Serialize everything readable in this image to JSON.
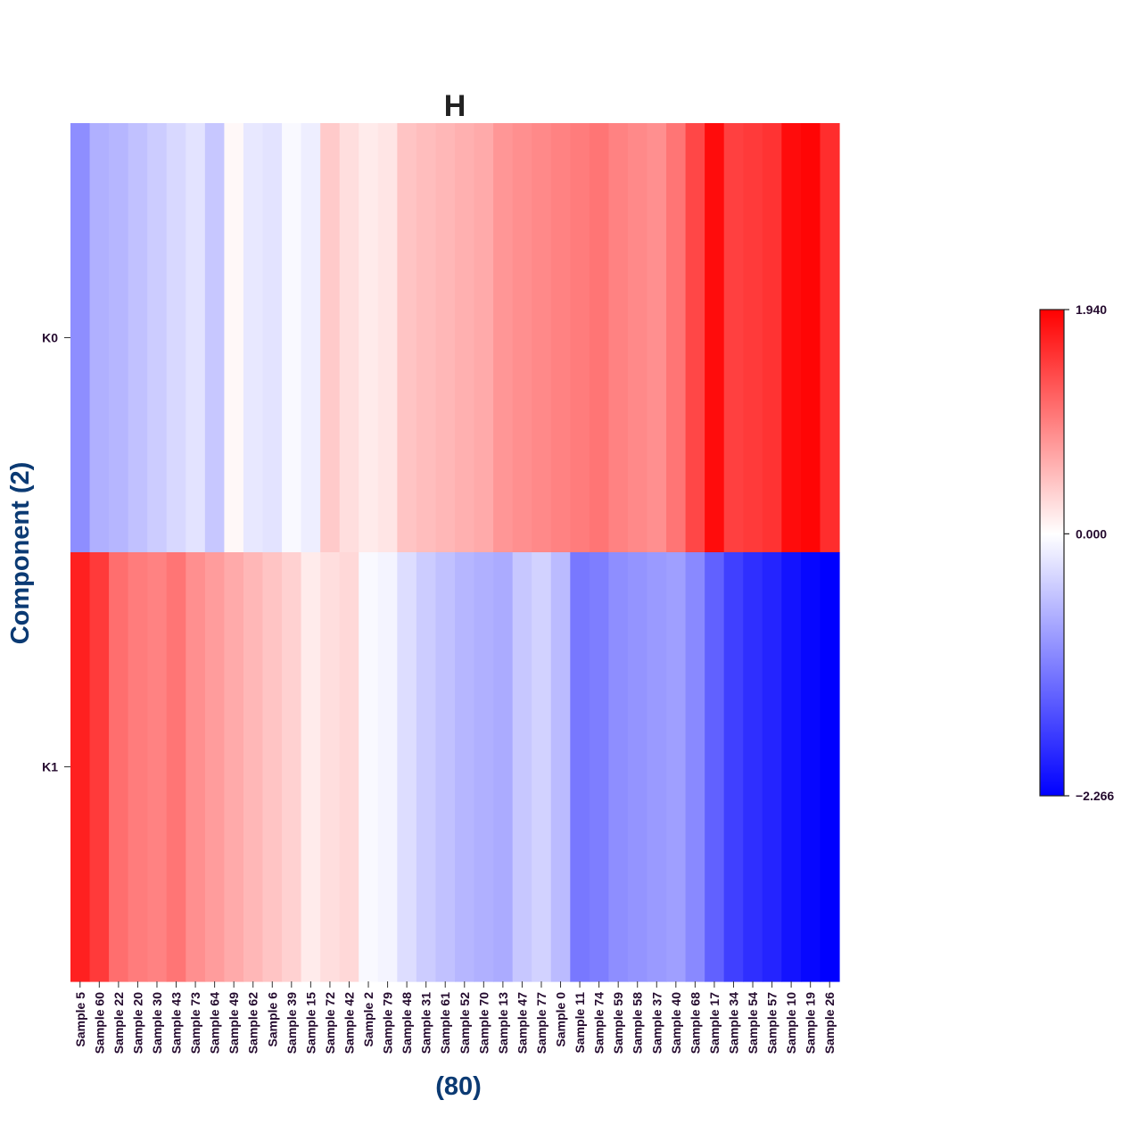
{
  "chart_data": {
    "type": "heatmap",
    "title": "H",
    "xlabel": "(80)",
    "ylabel": "Component (2)",
    "rows": [
      "K0",
      "K1"
    ],
    "columns": [
      "Sample 5",
      "Sample 60",
      "Sample 22",
      "Sample 20",
      "Sample 30",
      "Sample 43",
      "Sample 73",
      "Sample 64",
      "Sample 49",
      "Sample 62",
      "Sample 6",
      "Sample 39",
      "Sample 15",
      "Sample 72",
      "Sample 42",
      "Sample 2",
      "Sample 79",
      "Sample 48",
      "Sample 31",
      "Sample 61",
      "Sample 52",
      "Sample 70",
      "Sample 13",
      "Sample 47",
      "Sample 77",
      "Sample 0",
      "Sample 11",
      "Sample 74",
      "Sample 59",
      "Sample 58",
      "Sample 37",
      "Sample 40",
      "Sample 68",
      "Sample 17",
      "Sample 34",
      "Sample 54",
      "Sample 57",
      "Sample 10",
      "Sample 19",
      "Sample 26"
    ],
    "values": [
      [
        -1.0,
        -0.7,
        -0.65,
        -0.55,
        -0.45,
        -0.35,
        -0.25,
        -0.5,
        0.05,
        -0.2,
        -0.25,
        -0.05,
        -0.15,
        0.4,
        0.25,
        0.15,
        0.2,
        0.45,
        0.5,
        0.55,
        0.6,
        0.65,
        0.8,
        0.85,
        0.9,
        0.95,
        1.0,
        1.05,
        0.95,
        0.9,
        0.85,
        1.05,
        1.4,
        1.85,
        1.45,
        1.5,
        1.55,
        1.85,
        1.9,
        1.6
      ],
      [
        1.7,
        1.5,
        1.1,
        1.0,
        0.95,
        1.05,
        0.85,
        0.75,
        0.65,
        0.55,
        0.45,
        0.35,
        0.15,
        0.25,
        0.3,
        -0.05,
        -0.1,
        -0.3,
        -0.45,
        -0.55,
        -0.65,
        -0.7,
        -0.75,
        -0.5,
        -0.4,
        -0.6,
        -1.2,
        -1.15,
        -1.0,
        -0.95,
        -0.9,
        -0.85,
        -1.05,
        -1.4,
        -1.7,
        -1.85,
        -1.95,
        -2.1,
        -2.2,
        -2.27
      ]
    ],
    "vmin": -2.266,
    "vmax": 1.94,
    "colormap": [
      "#0000ff",
      "#ffffff",
      "#ff0000"
    ],
    "colorbar": {
      "ticks": [
        1.94,
        0.0,
        -2.266
      ],
      "tick_labels": [
        "1.940",
        "0.000",
        "−2.266"
      ]
    },
    "grid": false,
    "legend": "colorbar-right"
  }
}
